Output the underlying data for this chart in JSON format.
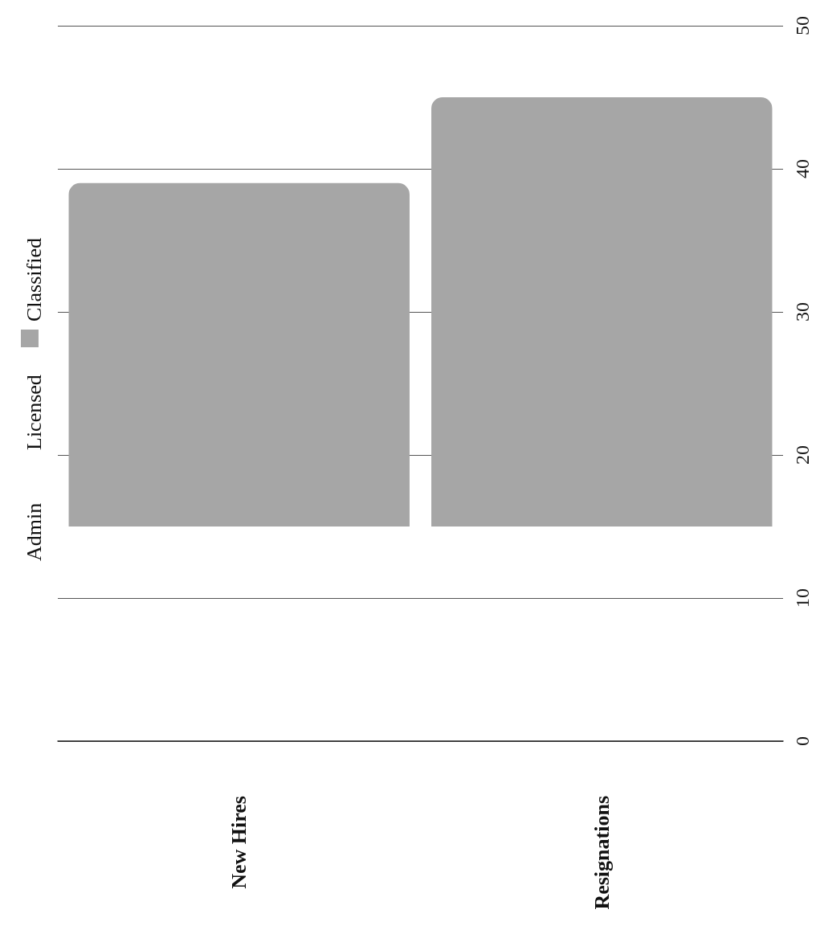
{
  "chart_data": {
    "type": "bar",
    "categories": [
      "New Hires",
      "Resignations"
    ],
    "series": [
      {
        "name": "Admin",
        "values": [
          null,
          null
        ]
      },
      {
        "name": "Licensed",
        "values": [
          null,
          null
        ]
      },
      {
        "name": "Classified",
        "color": "#a6a6a6",
        "values": [
          24,
          30
        ],
        "base": [
          15,
          15
        ]
      }
    ],
    "ylim": [
      0,
      50
    ],
    "yticks": [
      0,
      10,
      20,
      30,
      40,
      50
    ],
    "grid": "y",
    "legend": "left"
  }
}
